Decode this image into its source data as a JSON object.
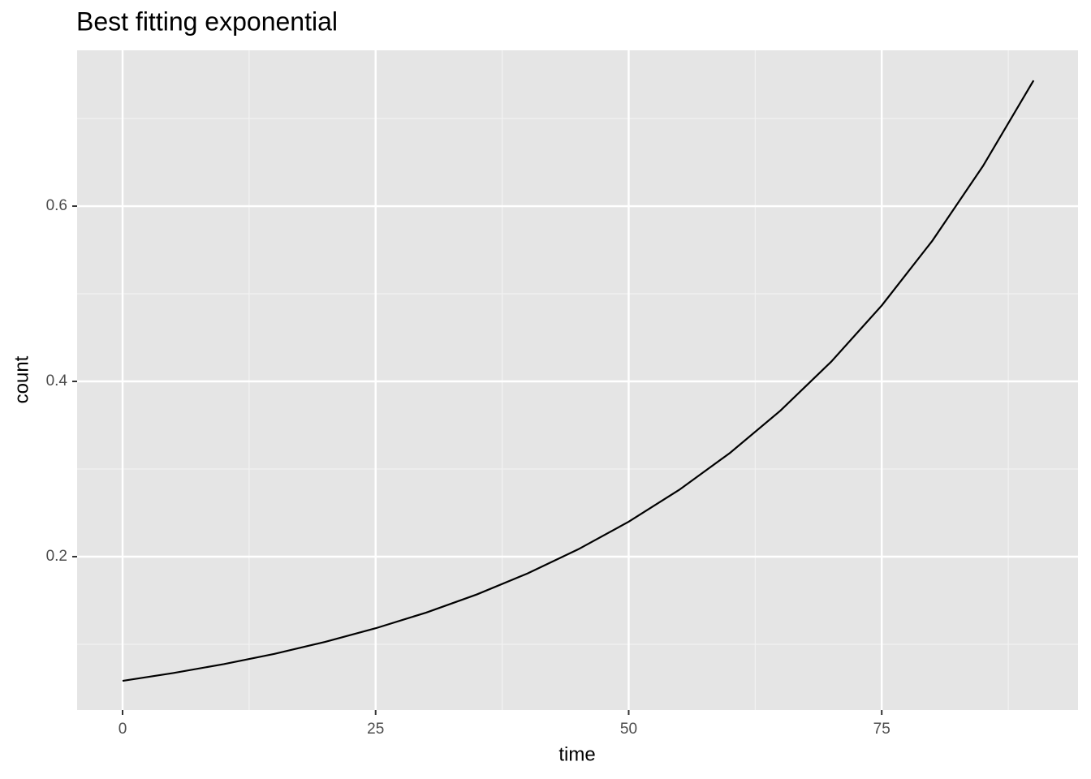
{
  "chart_data": {
    "type": "line",
    "title": "Best fitting exponential",
    "x_label": "time",
    "y_label": "count",
    "x": [
      0,
      5,
      10,
      15,
      20,
      25,
      30,
      35,
      40,
      45,
      50,
      55,
      60,
      65,
      70,
      75,
      80,
      85,
      90
    ],
    "series": [
      {
        "color": "#000000",
        "values": [
          0.0583,
          0.0672,
          0.0774,
          0.0891,
          0.1027,
          0.1183,
          0.1362,
          0.1569,
          0.1808,
          0.2083,
          0.2399,
          0.2763,
          0.3183,
          0.3667,
          0.4224,
          0.4866,
          0.5605,
          0.6457,
          0.7434
        ]
      }
    ],
    "xlim": [
      -4.49,
      94.39
    ],
    "ylim": [
      0.025,
      0.7778
    ],
    "xticks": [
      0,
      25,
      50,
      75
    ],
    "yticks": [
      0.2,
      0.4,
      0.6
    ],
    "grid": true
  }
}
